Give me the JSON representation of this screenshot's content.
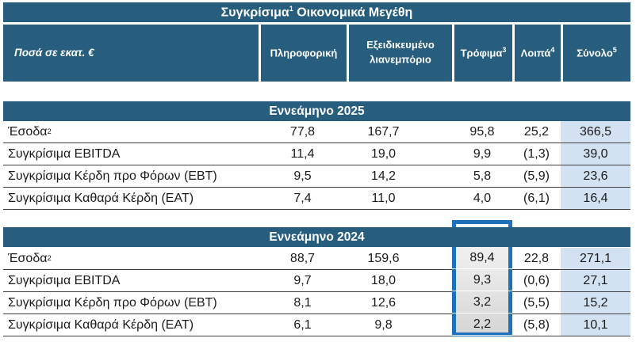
{
  "title": {
    "pre": "Συγκρίσιμα",
    "sup": "1",
    "post": " Οικονομικά Μεγέθη"
  },
  "columns": {
    "label": "Ποσά σε εκατ. €",
    "cols": [
      {
        "text": "Πληροφορική",
        "sup": ""
      },
      {
        "text": "Εξειδικευμένο λιανεμπόριο",
        "sup": ""
      },
      {
        "text": "Τρόφιμα",
        "sup": "3"
      },
      {
        "text": "Λοιπά",
        "sup": "4"
      },
      {
        "text": "Σύνολο",
        "sup": "5"
      }
    ]
  },
  "sections": [
    {
      "header": "Εννεάμηνο 2025",
      "rows": [
        {
          "label": "Έσοδα",
          "sup": "2",
          "values": [
            "77,8",
            "167,7",
            "95,8",
            "25,2",
            "366,5"
          ]
        },
        {
          "label": "Συγκρίσιμα EBITDA",
          "sup": "",
          "values": [
            "11,4",
            "19,0",
            "9,9",
            "(1,3)",
            "39,0"
          ]
        },
        {
          "label": "Συγκρίσιμα Κέρδη προ Φόρων (EBT)",
          "sup": "",
          "values": [
            "9,5",
            "14,2",
            "5,8",
            "(5,9)",
            "23,6"
          ]
        },
        {
          "label": "Συγκρίσιμα Καθαρά Κέρδη (EAT)",
          "sup": "",
          "values": [
            "7,4",
            "11,0",
            "4,0",
            "(6,1)",
            "16,4"
          ]
        }
      ]
    },
    {
      "header": "Εννεάμηνο 2024",
      "highlighted_column": "Τρόφιμα",
      "rows": [
        {
          "label": "Έσοδα",
          "sup": "2",
          "values": [
            "88,7",
            "159,6",
            "89,4",
            "22,8",
            "271,1"
          ]
        },
        {
          "label": "Συγκρίσιμα EBITDA",
          "sup": "",
          "values": [
            "9,7",
            "18,0",
            "9,3",
            "(0,6)",
            "27,1"
          ]
        },
        {
          "label": "Συγκρίσιμα Κέρδη προ Φόρων (EBT)",
          "sup": "",
          "values": [
            "8,1",
            "12,6",
            "3,2",
            "(5,5)",
            "15,2"
          ]
        },
        {
          "label": "Συγκρίσιμα Καθαρά Κέρδη (EAT)",
          "sup": "",
          "values": [
            "6,1",
            "9,8",
            "2,2",
            "(5,8)",
            "10,1"
          ]
        }
      ]
    }
  ],
  "colors": {
    "header_dark_blue": "#275e7d",
    "total_column_light_blue": "#d2e2f3",
    "highlight_border_blue": "#1e70ba",
    "highlight_fill_gray": "#e9e9e9",
    "row_line": "#3f3f3f",
    "text": "#1a1a1a"
  }
}
